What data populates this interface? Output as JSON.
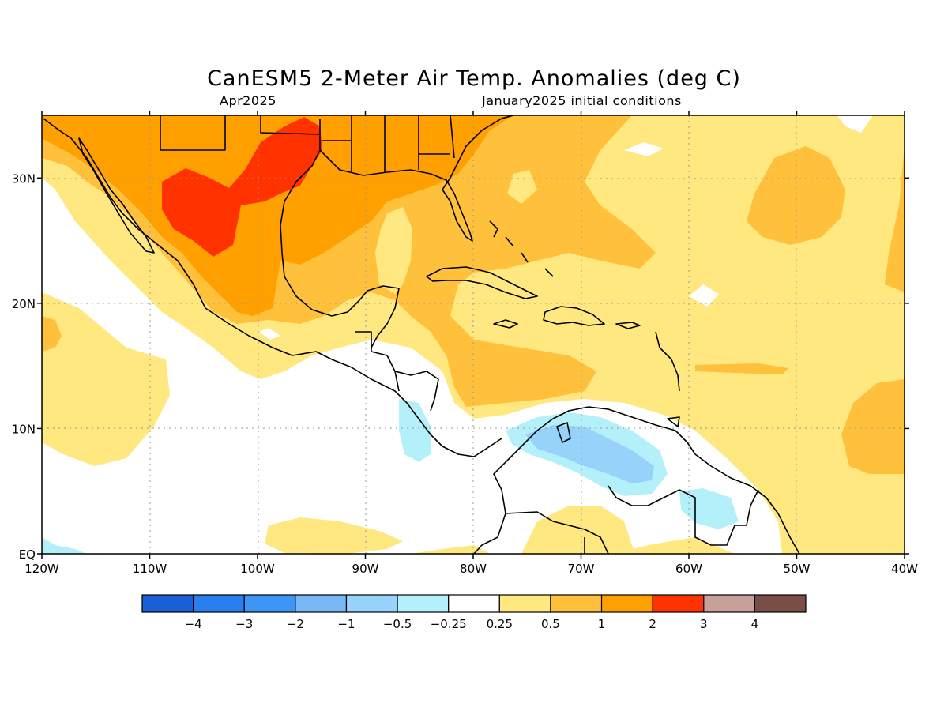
{
  "title": "CanESM5 2-Meter Air Temp. Anomalies (deg C)",
  "subtitle_left": "Apr2025",
  "subtitle_right": "January2025 initial conditions",
  "map": {
    "lon_range": [
      -120,
      -40
    ],
    "lat_range": [
      0,
      35
    ],
    "lon_ticks": [
      "120W",
      "110W",
      "100W",
      "90W",
      "80W",
      "70W",
      "60W",
      "50W",
      "40W"
    ],
    "lat_ticks": [
      "EQ",
      "10N",
      "20N",
      "30N"
    ],
    "grid": "dotted"
  },
  "colorbar": {
    "colors": [
      "#1a5fd6",
      "#2a7ff0",
      "#3c96f5",
      "#78b8f7",
      "#96d2fa",
      "#b4f0fa",
      "#ffffff",
      "#ffe880",
      "#ffc03c",
      "#ffa000",
      "#ff3200",
      "#c8a09a",
      "#7a4e46"
    ],
    "labels": [
      "−4",
      "−3",
      "−2",
      "−1",
      "−0.5",
      "−0.25",
      "0.25",
      "0.5",
      "1",
      "2",
      "3",
      "4"
    ]
  },
  "field_colors": {
    "weak_warm": "#ffe880",
    "warm": "#ffc03c",
    "hot": "#ffa000",
    "very_hot": "#ff3200",
    "weak_cool": "#b4f0fa",
    "cool": "#96d2fa",
    "neutral": "#ffffff"
  }
}
